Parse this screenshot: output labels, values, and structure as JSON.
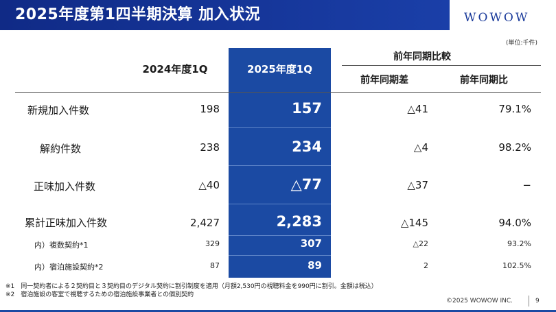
{
  "header": {
    "title": "2025年度第1四半期決算 加入状況",
    "brand": "WOWOW"
  },
  "unit_note": "(単位:千件)",
  "columns": {
    "prev": "2024年度1Q",
    "curr": "2025年度1Q",
    "yoy_group": "前年同期比較",
    "yoy_diff": "前年同期差",
    "yoy_ratio": "前年同期比"
  },
  "rows": [
    {
      "label": "新規加入件数",
      "prev": "198",
      "curr": "157",
      "diff": "△41",
      "ratio": "79.1%"
    },
    {
      "label": "解約件数",
      "prev": "238",
      "curr": "234",
      "diff": "△4",
      "ratio": "98.2%"
    },
    {
      "label": "正味加入件数",
      "prev": "△40",
      "curr": "△77",
      "diff": "△37",
      "ratio": "−"
    },
    {
      "label": "累計正味加入件数",
      "prev": "2,427",
      "curr": "2,283",
      "diff": "△145",
      "ratio": "94.0%"
    },
    {
      "label": "内）複数契約*1",
      "prev": "329",
      "curr": "307",
      "diff": "△22",
      "ratio": "93.2%"
    },
    {
      "label": "内）宿泊施設契約*2",
      "prev": "87",
      "curr": "89",
      "diff": "2",
      "ratio": "102.5%"
    }
  ],
  "notes": [
    "※1　同一契約者による２契約目と３契約目のデジタル契約に割引制度を適用（月額2,530円の視聴料金を990円に割引。金額は税込）",
    "※2　宿泊施設の客室で視聴するための宿泊施設事業者との個別契約"
  ],
  "footer": {
    "copyright": "©2025 WOWOW INC.",
    "page_number": "9"
  },
  "colors": {
    "header_bg": "#102a86",
    "highlight_column": "#1b4aa3",
    "brand_text": "#1a3a9a"
  }
}
